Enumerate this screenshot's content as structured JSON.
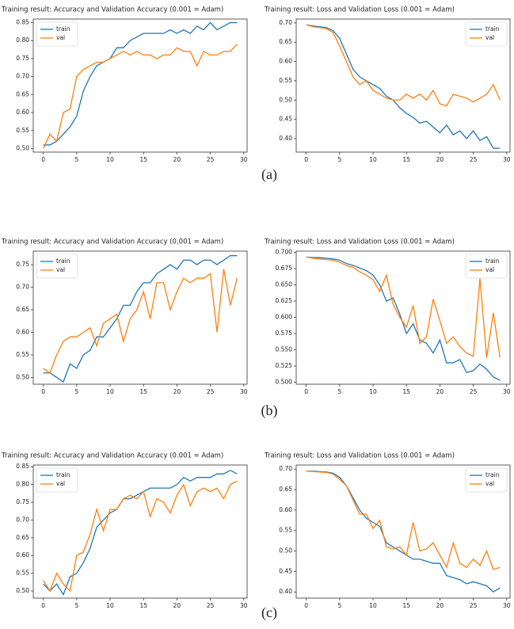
{
  "chart_data": [
    {
      "type": "line",
      "title": "Training result: Accuracy and Validation Accuracy (0.001 = Adam)",
      "x": [
        0,
        1,
        2,
        3,
        4,
        5,
        6,
        7,
        8,
        9,
        10,
        11,
        12,
        13,
        14,
        15,
        16,
        17,
        18,
        19,
        20,
        21,
        22,
        23,
        24,
        25,
        26,
        27,
        28,
        29
      ],
      "xlim": [
        -1.5,
        30.5
      ],
      "xticks": [
        0,
        5,
        10,
        15,
        20,
        25,
        30
      ],
      "ylim": [
        0.49,
        0.86
      ],
      "yticks": [
        {
          "value": 0.5,
          "label": "0.50"
        },
        0.55,
        {
          "value": 0.6,
          "label": "0.60"
        },
        0.65,
        {
          "value": 0.7,
          "label": "0.70"
        },
        0.75,
        {
          "value": 0.8,
          "label": "0.80"
        },
        0.85
      ],
      "grid": false,
      "legend": "upper left",
      "series": [
        {
          "name": "train",
          "color": "#1f77b4",
          "values": [
            0.51,
            0.51,
            0.52,
            0.54,
            0.56,
            0.59,
            0.66,
            0.7,
            0.73,
            0.74,
            0.75,
            0.78,
            0.78,
            0.8,
            0.81,
            0.82,
            0.82,
            0.82,
            0.82,
            0.83,
            0.82,
            0.83,
            0.82,
            0.84,
            0.83,
            0.85,
            0.83,
            0.84,
            0.85,
            0.85
          ]
        },
        {
          "name": "val",
          "color": "#ff7f0e",
          "values": [
            0.5,
            0.54,
            0.52,
            0.6,
            0.61,
            0.7,
            0.72,
            0.73,
            0.74,
            0.74,
            0.75,
            0.76,
            0.77,
            0.76,
            0.77,
            0.76,
            0.76,
            0.75,
            0.76,
            0.76,
            0.78,
            0.77,
            0.77,
            0.73,
            0.77,
            0.76,
            0.76,
            0.77,
            0.77,
            0.79
          ]
        }
      ]
    },
    {
      "type": "line",
      "title": "Training result: Loss and Validation Loss (0.001 = Adam)",
      "x": [
        0,
        1,
        2,
        3,
        4,
        5,
        6,
        7,
        8,
        9,
        10,
        11,
        12,
        13,
        14,
        15,
        16,
        17,
        18,
        19,
        20,
        21,
        22,
        23,
        24,
        25,
        26,
        27,
        28,
        29
      ],
      "xlim": [
        -1.5,
        30.5
      ],
      "xticks": [
        0,
        5,
        10,
        15,
        20,
        25,
        30
      ],
      "ylim": [
        0.365,
        0.71
      ],
      "yticks": [
        {
          "value": 0.4,
          "label": "0.40"
        },
        0.45,
        {
          "value": 0.5,
          "label": "0.50"
        },
        0.55,
        {
          "value": 0.6,
          "label": "0.60"
        },
        0.65,
        {
          "value": 0.7,
          "label": "0.70"
        }
      ],
      "grid": false,
      "legend": "upper right",
      "series": [
        {
          "name": "train",
          "color": "#1f77b4",
          "values": [
            0.695,
            0.692,
            0.69,
            0.688,
            0.68,
            0.66,
            0.62,
            0.58,
            0.56,
            0.55,
            0.54,
            0.53,
            0.51,
            0.5,
            0.48,
            0.465,
            0.455,
            0.44,
            0.445,
            0.43,
            0.415,
            0.435,
            0.41,
            0.42,
            0.4,
            0.42,
            0.395,
            0.405,
            0.375,
            0.375
          ]
        },
        {
          "name": "val",
          "color": "#ff7f0e",
          "values": [
            0.695,
            0.69,
            0.688,
            0.685,
            0.675,
            0.64,
            0.6,
            0.56,
            0.54,
            0.55,
            0.525,
            0.515,
            0.505,
            0.5,
            0.5,
            0.515,
            0.505,
            0.515,
            0.5,
            0.525,
            0.49,
            0.485,
            0.515,
            0.51,
            0.505,
            0.495,
            0.505,
            0.515,
            0.54,
            0.5
          ]
        }
      ]
    },
    {
      "type": "line",
      "title": "Training result: Accuracy and Validation Accuracy (0,001 = Adam)",
      "x": [
        0,
        1,
        2,
        3,
        4,
        5,
        6,
        7,
        8,
        9,
        10,
        11,
        12,
        13,
        14,
        15,
        16,
        17,
        18,
        19,
        20,
        21,
        22,
        23,
        24,
        25,
        26,
        27,
        28,
        29
      ],
      "xlim": [
        -1.5,
        30.5
      ],
      "xticks": [
        0,
        5,
        10,
        15,
        20,
        25,
        30
      ],
      "ylim": [
        0.485,
        0.78
      ],
      "yticks": [
        {
          "value": 0.5,
          "label": "0.50"
        },
        0.55,
        {
          "value": 0.6,
          "label": "0.60"
        },
        0.65,
        {
          "value": 0.7,
          "label": "0.70"
        },
        0.75
      ],
      "grid": false,
      "legend": "upper left",
      "series": [
        {
          "name": "train",
          "color": "#1f77b4",
          "values": [
            0.51,
            0.51,
            0.5,
            0.49,
            0.53,
            0.52,
            0.55,
            0.56,
            0.59,
            0.59,
            0.61,
            0.63,
            0.66,
            0.66,
            0.69,
            0.71,
            0.71,
            0.73,
            0.74,
            0.75,
            0.74,
            0.76,
            0.76,
            0.75,
            0.76,
            0.76,
            0.75,
            0.76,
            0.77,
            0.77
          ]
        },
        {
          "name": "val",
          "color": "#ff7f0e",
          "values": [
            0.52,
            0.51,
            0.55,
            0.58,
            0.59,
            0.59,
            0.6,
            0.61,
            0.57,
            0.62,
            0.63,
            0.64,
            0.58,
            0.63,
            0.65,
            0.69,
            0.63,
            0.71,
            0.71,
            0.65,
            0.69,
            0.72,
            0.71,
            0.72,
            0.72,
            0.73,
            0.6,
            0.74,
            0.66,
            0.72
          ]
        }
      ]
    },
    {
      "type": "line",
      "title": "Training result: Loss and Validation Loss (0.001 = Adam)",
      "x": [
        0,
        1,
        2,
        3,
        4,
        5,
        6,
        7,
        8,
        9,
        10,
        11,
        12,
        13,
        14,
        15,
        16,
        17,
        18,
        19,
        20,
        21,
        22,
        23,
        24,
        25,
        26,
        27,
        28,
        29
      ],
      "xlim": [
        -1.5,
        30.5
      ],
      "xticks": [
        0,
        5,
        10,
        15,
        20,
        25,
        30
      ],
      "ylim": [
        0.497,
        0.702
      ],
      "yticks": [
        {
          "value": 0.5,
          "label": "0.500"
        },
        0.525,
        {
          "value": 0.55,
          "label": "0.550"
        },
        0.575,
        {
          "value": 0.6,
          "label": "0.600"
        },
        0.625,
        {
          "value": 0.65,
          "label": "0.650"
        },
        0.675,
        {
          "value": 0.7,
          "label": "0.700"
        }
      ],
      "grid": false,
      "legend": "upper right",
      "series": [
        {
          "name": "train",
          "color": "#1f77b4",
          "values": [
            0.693,
            0.692,
            0.692,
            0.691,
            0.69,
            0.688,
            0.683,
            0.68,
            0.676,
            0.672,
            0.665,
            0.65,
            0.625,
            0.63,
            0.605,
            0.575,
            0.59,
            0.565,
            0.56,
            0.545,
            0.565,
            0.53,
            0.53,
            0.535,
            0.515,
            0.518,
            0.528,
            0.52,
            0.508,
            0.503
          ]
        },
        {
          "name": "val",
          "color": "#ff7f0e",
          "values": [
            0.693,
            0.691,
            0.69,
            0.689,
            0.688,
            0.685,
            0.68,
            0.677,
            0.67,
            0.665,
            0.658,
            0.64,
            0.665,
            0.62,
            0.6,
            0.585,
            0.618,
            0.56,
            0.57,
            0.628,
            0.595,
            0.56,
            0.57,
            0.555,
            0.545,
            0.54,
            0.66,
            0.538,
            0.607,
            0.538
          ]
        }
      ]
    },
    {
      "type": "line",
      "title": "Training result: Accuracy and Validation Accuracy (0.001 = Adam)",
      "x": [
        0,
        1,
        2,
        3,
        4,
        5,
        6,
        7,
        8,
        9,
        10,
        11,
        12,
        13,
        14,
        15,
        16,
        17,
        18,
        19,
        20,
        21,
        22,
        23,
        24,
        25,
        26,
        27,
        28,
        29
      ],
      "xlim": [
        -1.5,
        30.5
      ],
      "xticks": [
        0,
        5,
        10,
        15,
        20,
        25,
        30
      ],
      "ylim": [
        0.48,
        0.855
      ],
      "yticks": [
        {
          "value": 0.5,
          "label": "0.50"
        },
        0.55,
        {
          "value": 0.6,
          "label": "0.60"
        },
        0.65,
        {
          "value": 0.7,
          "label": "0.70"
        },
        0.75,
        {
          "value": 0.8,
          "label": "0.80"
        },
        0.85
      ],
      "grid": false,
      "legend": "upper left",
      "series": [
        {
          "name": "train",
          "color": "#1f77b4",
          "values": [
            0.52,
            0.5,
            0.52,
            0.49,
            0.54,
            0.55,
            0.58,
            0.62,
            0.68,
            0.7,
            0.72,
            0.73,
            0.76,
            0.76,
            0.77,
            0.78,
            0.79,
            0.79,
            0.79,
            0.79,
            0.8,
            0.82,
            0.81,
            0.82,
            0.82,
            0.82,
            0.83,
            0.83,
            0.84,
            0.83
          ]
        },
        {
          "name": "val",
          "color": "#ff7f0e",
          "values": [
            0.53,
            0.5,
            0.55,
            0.52,
            0.5,
            0.6,
            0.61,
            0.66,
            0.73,
            0.67,
            0.73,
            0.73,
            0.76,
            0.77,
            0.76,
            0.78,
            0.71,
            0.76,
            0.75,
            0.72,
            0.77,
            0.8,
            0.74,
            0.78,
            0.79,
            0.78,
            0.79,
            0.76,
            0.8,
            0.81
          ]
        }
      ]
    },
    {
      "type": "line",
      "title": "Training result: Loss and Validation Loss (0.001 = Adam)",
      "x": [
        0,
        1,
        2,
        3,
        4,
        5,
        6,
        7,
        8,
        9,
        10,
        11,
        12,
        13,
        14,
        15,
        16,
        17,
        18,
        19,
        20,
        21,
        22,
        23,
        24,
        25,
        26,
        27,
        28,
        29
      ],
      "xlim": [
        -1.5,
        30.5
      ],
      "xticks": [
        0,
        5,
        10,
        15,
        20,
        25,
        30
      ],
      "ylim": [
        0.385,
        0.71
      ],
      "yticks": [
        {
          "value": 0.4,
          "label": "0.40"
        },
        0.45,
        {
          "value": 0.5,
          "label": "0.50"
        },
        0.55,
        {
          "value": 0.6,
          "label": "0.60"
        },
        0.65,
        {
          "value": 0.7,
          "label": "0.70"
        }
      ],
      "grid": false,
      "legend": "upper right",
      "series": [
        {
          "name": "train",
          "color": "#1f77b4",
          "values": [
            0.695,
            0.695,
            0.694,
            0.693,
            0.69,
            0.68,
            0.66,
            0.63,
            0.6,
            0.58,
            0.57,
            0.56,
            0.52,
            0.51,
            0.5,
            0.49,
            0.48,
            0.48,
            0.475,
            0.47,
            0.47,
            0.44,
            0.435,
            0.43,
            0.42,
            0.425,
            0.42,
            0.415,
            0.4,
            0.41
          ]
        },
        {
          "name": "val",
          "color": "#ff7f0e",
          "values": [
            0.695,
            0.694,
            0.693,
            0.692,
            0.688,
            0.675,
            0.66,
            0.625,
            0.59,
            0.59,
            0.555,
            0.575,
            0.51,
            0.505,
            0.51,
            0.49,
            0.57,
            0.5,
            0.505,
            0.52,
            0.49,
            0.46,
            0.52,
            0.47,
            0.46,
            0.48,
            0.465,
            0.5,
            0.455,
            0.46
          ]
        }
      ]
    }
  ],
  "captions": [
    "(a)",
    "(b)",
    "(c)"
  ]
}
